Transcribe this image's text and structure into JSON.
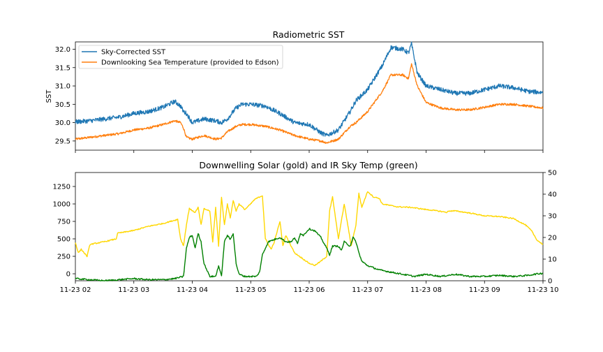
{
  "colors": {
    "sst": "#1f77b4",
    "downlooking": "#ff7f0e",
    "solar": "#ffd700",
    "irsky": "#008000"
  },
  "chart_data": [
    {
      "type": "line",
      "title": "Radiometric SST",
      "xlabel": "",
      "ylabel": "SST",
      "xlim": [
        "11-23 02",
        "11-23 10"
      ],
      "ylim": [
        29.25,
        32.2
      ],
      "yticks": [
        "29.5",
        "30.0",
        "30.5",
        "31.0",
        "31.5",
        "32.0"
      ],
      "legend": "upper-left",
      "x_hours": [
        2.0,
        2.25,
        2.5,
        2.75,
        3.0,
        3.25,
        3.5,
        3.7,
        3.8,
        3.85,
        3.9,
        4.0,
        4.2,
        4.4,
        4.5,
        4.6,
        4.75,
        4.85,
        5.0,
        5.25,
        5.5,
        5.75,
        6.0,
        6.2,
        6.3,
        6.5,
        6.7,
        6.8,
        7.0,
        7.25,
        7.4,
        7.6,
        7.7,
        7.75,
        7.85,
        8.0,
        8.25,
        8.5,
        8.75,
        9.0,
        9.25,
        9.5,
        9.75,
        10.0
      ],
      "series": [
        {
          "name": "Sky-Corrected SST",
          "values": [
            30.02,
            30.05,
            30.1,
            30.15,
            30.25,
            30.3,
            30.42,
            30.58,
            30.45,
            30.3,
            30.25,
            30.0,
            30.1,
            30.05,
            30.0,
            30.1,
            30.4,
            30.5,
            30.5,
            30.45,
            30.25,
            30.0,
            29.95,
            29.72,
            29.65,
            29.8,
            30.3,
            30.6,
            30.9,
            31.55,
            32.05,
            32.0,
            31.9,
            32.15,
            31.35,
            31.0,
            30.9,
            30.8,
            30.8,
            30.9,
            31.0,
            30.95,
            30.85,
            30.82
          ]
        },
        {
          "name": "Downlooking Sea Temperature (provided to Edson)",
          "values": [
            29.55,
            29.6,
            29.65,
            29.7,
            29.8,
            29.85,
            29.95,
            30.05,
            30.0,
            29.85,
            29.6,
            29.55,
            29.65,
            29.55,
            29.58,
            29.75,
            29.9,
            29.95,
            29.95,
            29.9,
            29.8,
            29.65,
            29.55,
            29.5,
            29.45,
            29.55,
            29.9,
            30.0,
            30.3,
            30.85,
            31.3,
            31.3,
            31.2,
            31.6,
            31.0,
            30.55,
            30.4,
            30.35,
            30.35,
            30.42,
            30.5,
            30.5,
            30.45,
            30.4
          ]
        }
      ]
    },
    {
      "type": "line",
      "title": "Downwelling Solar (gold) and IR Sky Temp (green)",
      "xlabel": "",
      "ylabel": "",
      "xlim": [
        "11-23 02",
        "11-23 10"
      ],
      "ylim_left": [
        -100,
        1450
      ],
      "ylim_right": [
        0,
        50
      ],
      "yticks_left": [
        "0",
        "250",
        "500",
        "750",
        "1000",
        "1250"
      ],
      "yticks_right": [
        "0",
        "10",
        "20",
        "30",
        "40",
        "50"
      ],
      "xticks": [
        "11-23 02",
        "11-23 03",
        "11-23 04",
        "11-23 05",
        "11-23 06",
        "11-23 07",
        "11-23 08",
        "11-23 09",
        "11-23 10"
      ],
      "solar": {
        "x": [
          2.0,
          2.05,
          2.1,
          2.15,
          2.2,
          2.25,
          2.5,
          2.7,
          2.72,
          3.0,
          3.25,
          3.5,
          3.75,
          3.8,
          3.85,
          3.9,
          3.95,
          4.0,
          4.05,
          4.1,
          4.15,
          4.2,
          4.3,
          4.35,
          4.4,
          4.45,
          4.5,
          4.55,
          4.6,
          4.65,
          4.7,
          4.75,
          4.8,
          4.9,
          5.0,
          5.05,
          5.1,
          5.15,
          5.2,
          5.25,
          5.35,
          5.4,
          5.5,
          5.55,
          5.6,
          5.75,
          6.0,
          6.1,
          6.2,
          6.3,
          6.35,
          6.4,
          6.45,
          6.5,
          6.6,
          6.7,
          6.72,
          6.8,
          6.85,
          6.9,
          7.0,
          7.1,
          7.2,
          7.25,
          7.5,
          7.75,
          8.0,
          8.2,
          8.35,
          8.4,
          8.5,
          8.75,
          9.0,
          9.25,
          9.5,
          9.7,
          9.8,
          9.9,
          10.0
        ],
        "values": [
          450,
          300,
          350,
          300,
          250,
          420,
          460,
          500,
          580,
          620,
          680,
          720,
          780,
          500,
          400,
          700,
          940,
          900,
          880,
          950,
          700,
          930,
          900,
          450,
          950,
          400,
          1100,
          700,
          1000,
          800,
          1050,
          900,
          1000,
          920,
          1000,
          1050,
          1080,
          1100,
          1120,
          500,
          350,
          450,
          750,
          400,
          550,
          300,
          150,
          120,
          180,
          250,
          900,
          1100,
          800,
          500,
          1000,
          500,
          400,
          700,
          1150,
          950,
          1180,
          1100,
          1080,
          1000,
          960,
          950,
          920,
          900,
          880,
          900,
          900,
          870,
          830,
          820,
          790,
          700,
          620,
          480,
          420
        ]
      },
      "irsky": {
        "x": [
          2.0,
          2.25,
          2.5,
          2.75,
          3.0,
          3.25,
          3.5,
          3.7,
          3.85,
          3.9,
          3.95,
          4.0,
          4.05,
          4.1,
          4.15,
          4.2,
          4.3,
          4.4,
          4.45,
          4.5,
          4.55,
          4.6,
          4.65,
          4.7,
          4.75,
          4.8,
          4.9,
          5.0,
          5.1,
          5.15,
          5.2,
          5.3,
          5.4,
          5.5,
          5.6,
          5.7,
          5.75,
          5.8,
          5.85,
          5.9,
          6.0,
          6.1,
          6.2,
          6.3,
          6.35,
          6.4,
          6.5,
          6.55,
          6.6,
          6.7,
          6.75,
          6.8,
          6.85,
          6.9,
          7.0,
          7.2,
          7.4,
          7.6,
          7.8,
          8.0,
          8.25,
          8.5,
          8.75,
          9.0,
          9.25,
          9.5,
          9.75,
          9.85,
          10.0
        ],
        "values": [
          1,
          0.5,
          0,
          0.5,
          1,
          0.5,
          0.5,
          1,
          2,
          15,
          20,
          21,
          15,
          22,
          18,
          8,
          2,
          2,
          7,
          2,
          18,
          21,
          19,
          22,
          8,
          3,
          2,
          2,
          2,
          4,
          12,
          18,
          19,
          20,
          18,
          18,
          20,
          17,
          22,
          21,
          24,
          23,
          20,
          15,
          12,
          16,
          16,
          14,
          18,
          16,
          20,
          18,
          13,
          9,
          7,
          5,
          4,
          3,
          2,
          3,
          2,
          3,
          2,
          2,
          2.5,
          2,
          2.5,
          3,
          3.5
        ]
      }
    }
  ]
}
